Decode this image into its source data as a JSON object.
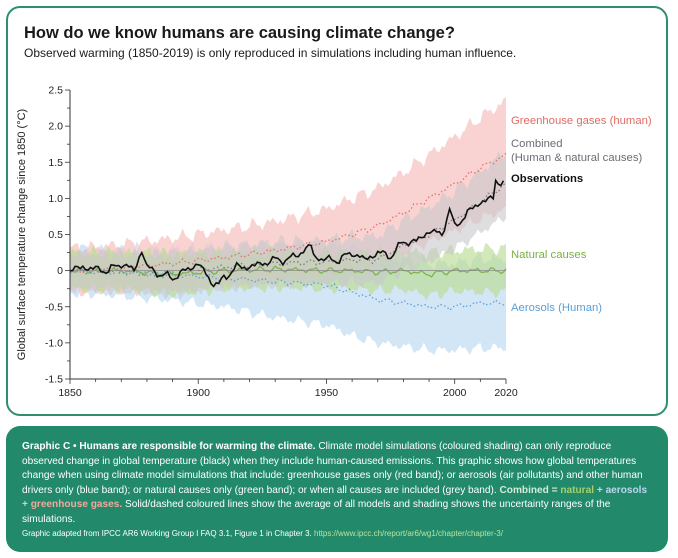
{
  "header": {
    "title": "How do we know humans are causing climate change?",
    "subtitle": "Observed warming (1850-2019) is only reproduced in simulations including human influence."
  },
  "chart_data": {
    "type": "line",
    "ylabel": "Global surface temperature change since 1850 (°C)",
    "xlim": [
      1850,
      2020
    ],
    "ylim": [
      -1.5,
      2.5
    ],
    "x_ticks": [
      "1850",
      "1900",
      "1950",
      "2000",
      "2020"
    ],
    "y_ticks": [
      "2.5",
      "2.0",
      "1.5",
      "1.0",
      "0.5",
      "0",
      "-0.5",
      "-1.0",
      "-1.5"
    ],
    "grid": false,
    "series": [
      {
        "name": "Greenhouse gases (human)",
        "color": "#e8706a",
        "band_color": "#f6c1bd",
        "x": [
          1850,
          1870,
          1890,
          1910,
          1930,
          1950,
          1960,
          1970,
          1980,
          1990,
          2000,
          2010,
          2020
        ],
        "mean": [
          0.0,
          0.04,
          0.1,
          0.18,
          0.28,
          0.4,
          0.5,
          0.62,
          0.8,
          1.0,
          1.2,
          1.42,
          1.6
        ],
        "band_width": [
          0.3,
          0.32,
          0.35,
          0.38,
          0.4,
          0.45,
          0.5,
          0.52,
          0.56,
          0.6,
          0.65,
          0.7,
          0.75
        ]
      },
      {
        "name": "Combined (Human & natural causes)",
        "color": "#7c7f88",
        "band_color": "#c8c8cc",
        "x": [
          1850,
          1870,
          1890,
          1910,
          1930,
          1950,
          1960,
          1970,
          1980,
          1990,
          2000,
          2010,
          2020
        ],
        "mean": [
          0.0,
          -0.02,
          -0.05,
          0.05,
          0.1,
          0.12,
          0.15,
          0.15,
          0.35,
          0.5,
          0.7,
          0.95,
          1.2
        ],
        "band_width": [
          0.25,
          0.25,
          0.28,
          0.28,
          0.3,
          0.3,
          0.32,
          0.33,
          0.35,
          0.38,
          0.4,
          0.42,
          0.45
        ]
      },
      {
        "name": "Natural causes",
        "color": "#7fb54b",
        "band_color": "#bcdc94",
        "x": [
          1850,
          1870,
          1890,
          1910,
          1930,
          1950,
          1960,
          1970,
          1980,
          1990,
          2000,
          2010,
          2020
        ],
        "mean": [
          0.0,
          0.0,
          -0.05,
          0.0,
          0.02,
          0.0,
          0.0,
          -0.02,
          0.0,
          -0.05,
          0.0,
          0.0,
          0.0
        ],
        "band_width": [
          0.25,
          0.25,
          0.28,
          0.25,
          0.25,
          0.25,
          0.25,
          0.26,
          0.26,
          0.3,
          0.28,
          0.3,
          0.3
        ]
      },
      {
        "name": "Aerosols (Human)",
        "color": "#5ea2d8",
        "band_color": "#c3def3",
        "x": [
          1850,
          1870,
          1890,
          1910,
          1930,
          1950,
          1960,
          1970,
          1980,
          1990,
          2000,
          2010,
          2020
        ],
        "mean": [
          0.0,
          -0.03,
          -0.06,
          -0.1,
          -0.15,
          -0.2,
          -0.3,
          -0.4,
          -0.45,
          -0.5,
          -0.5,
          -0.45,
          -0.45
        ],
        "band_width": [
          0.3,
          0.32,
          0.35,
          0.4,
          0.5,
          0.55,
          0.6,
          0.6,
          0.6,
          0.6,
          0.6,
          0.62,
          0.62
        ]
      },
      {
        "name": "Observations",
        "color": "#111111",
        "x": [
          1850,
          1855,
          1860,
          1865,
          1870,
          1875,
          1878,
          1880,
          1885,
          1890,
          1895,
          1900,
          1905,
          1908,
          1910,
          1915,
          1920,
          1925,
          1930,
          1935,
          1940,
          1944,
          1945,
          1950,
          1955,
          1960,
          1965,
          1970,
          1975,
          1980,
          1985,
          1990,
          1995,
          1998,
          2000,
          2005,
          2010,
          2015,
          2016,
          2020
        ],
        "y": [
          0.0,
          0.05,
          0.02,
          0.0,
          0.1,
          0.0,
          0.28,
          0.05,
          -0.05,
          -0.1,
          0.0,
          0.1,
          -0.15,
          -0.2,
          -0.1,
          0.05,
          0.05,
          0.1,
          0.15,
          0.15,
          0.25,
          0.35,
          0.2,
          0.15,
          0.15,
          0.25,
          0.15,
          0.25,
          0.2,
          0.4,
          0.4,
          0.55,
          0.5,
          0.85,
          0.6,
          0.8,
          0.95,
          1.0,
          1.25,
          1.2
        ]
      }
    ],
    "legend_placement": "right of plot, beside series ends"
  },
  "caption": {
    "heading": "Graphic C • Humans are responsible for warming the climate.",
    "body": "Climate model simulations (coloured shading) can only reproduce observed change in global temperature (black) when they include human-caused emissions. This graphic shows how global temperatures change when using climate model simulations that include: greenhouse gases only (red band); or aerosols (air pollutants) and other human drivers only (blue band); or natural causes only (green band); or when all causes are included (grey band).",
    "eq_combined": "Combined",
    "eq_equals": "=",
    "eq_natural": "natural",
    "eq_plus1": "+",
    "eq_aerosols": "aerosols",
    "eq_plus2": "+",
    "eq_ghg": "greenhouse gases.",
    "tail": "Solid/dashed coloured lines show the average of all models and shading shows the uncertainty ranges of the simulations.",
    "source": "Graphic adapted from IPCC AR6 Working Group I FAQ 3.1, Figure 1 in Chapter 3.",
    "source_url": "https://www.ipcc.ch/report/ar6/wg1/chapter/chapter-3/"
  }
}
